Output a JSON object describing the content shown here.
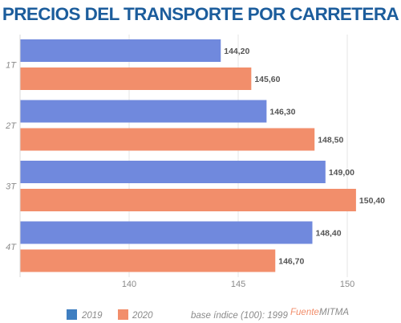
{
  "chart_data": {
    "type": "bar",
    "orientation": "horizontal",
    "title": "PRECIOS DEL TRANSPORTE POR CARRETERA",
    "categories": [
      "1T",
      "2T",
      "3T",
      "4T"
    ],
    "series": [
      {
        "name": "2019",
        "color": "#7089dd",
        "values": [
          144.2,
          146.3,
          149.0,
          148.4
        ],
        "labels": [
          "144,20",
          "146,30",
          "149,00",
          "148,40"
        ]
      },
      {
        "name": "2020",
        "color": "#f28e6b",
        "values": [
          145.6,
          148.5,
          150.4,
          146.7
        ],
        "labels": [
          "145,60",
          "148,50",
          "150,40",
          "146,70"
        ]
      }
    ],
    "xlim": [
      135,
      150.9
    ],
    "xticks": [
      140,
      145,
      150
    ],
    "xtick_labels": [
      "140",
      "145",
      "150"
    ],
    "grid": true,
    "legend": {
      "placement": "bottom",
      "items": [
        {
          "label": "2019",
          "color": "#3f7fc1"
        },
        {
          "label": "2020",
          "color": "#f28e6b"
        }
      ]
    },
    "note": "base índice (100): 1999",
    "source_label": "Fuente:",
    "source_value": "MITMA"
  }
}
